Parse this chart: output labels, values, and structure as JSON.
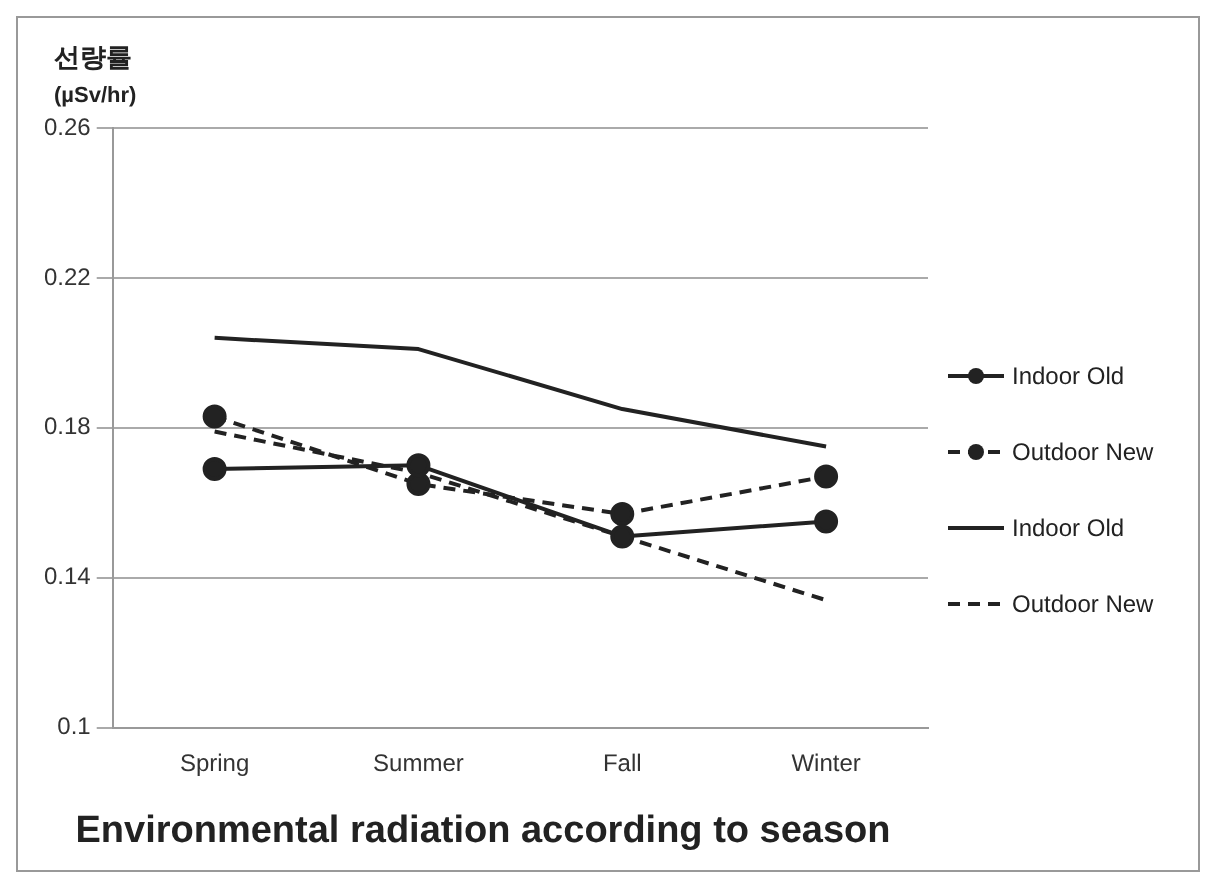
{
  "chart_data": {
    "type": "line",
    "title": "Environmental radiation according to season",
    "ylabel": "선량률\n(µSv/hr)",
    "categories": [
      "Spring",
      "Summer",
      "Fall",
      "Winter"
    ],
    "series": [
      {
        "name": "Indoor Old",
        "color": "#222222",
        "marker": "circle",
        "line_style": "solid",
        "values": [
          0.169,
          0.17,
          0.151,
          0.155
        ]
      },
      {
        "name": "Outdoor New",
        "color": "#222222",
        "marker": "circle",
        "line_style": "dashed",
        "values": [
          0.183,
          0.165,
          0.157,
          0.167
        ]
      },
      {
        "name": "Indoor Old",
        "color": "#222222",
        "marker": "none",
        "line_style": "solid",
        "values": [
          0.204,
          0.201,
          0.185,
          0.175
        ]
      },
      {
        "name": "Outdoor New",
        "color": "#222222",
        "marker": "none",
        "line_style": "dashed",
        "values": [
          0.179,
          0.168,
          0.151,
          0.134
        ]
      }
    ],
    "ylim": [
      0.1,
      0.26
    ],
    "yticks": [
      0.1,
      0.14,
      0.18,
      0.22,
      0.26
    ],
    "grid": "y",
    "legend": "right"
  }
}
